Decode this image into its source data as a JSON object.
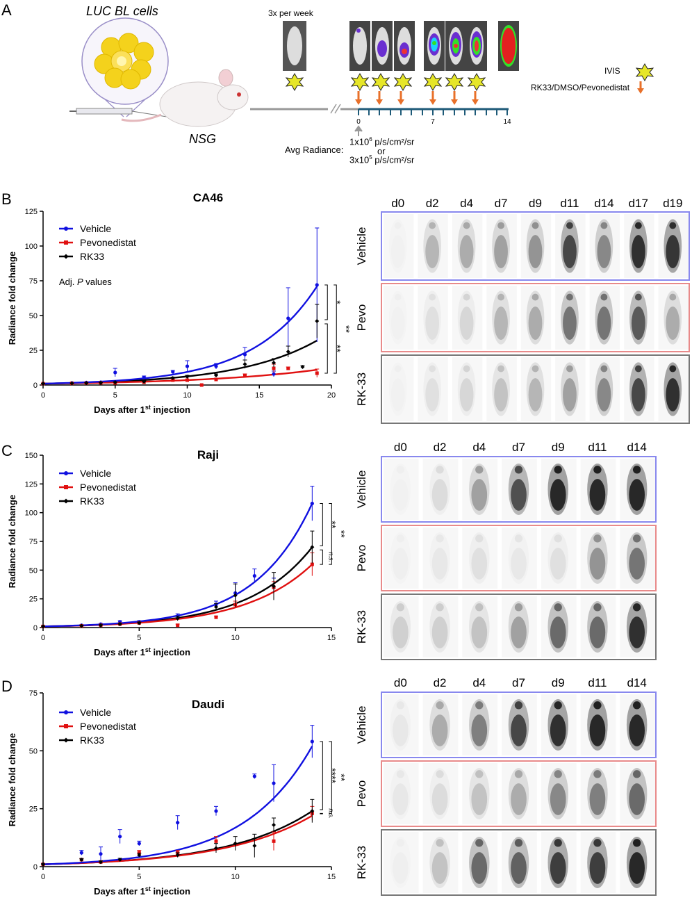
{
  "panels": {
    "a": "A",
    "b": "B",
    "c": "C",
    "d": "D"
  },
  "schema": {
    "cells_label": "LUC BL cells",
    "mouse_label": "NSG",
    "freq_label": "3x per week",
    "legend_ivis": "IVIS",
    "legend_treat": "RK33/DMSO/Pevonedistat",
    "axis_ticks": [
      "0",
      "7",
      "14"
    ],
    "radiance_label": "Avg Radiance:",
    "radiance_1_base": "1x10",
    "radiance_1_exp": "6",
    "radiance_1_unit": " p/s/cm²/sr",
    "radiance_or": "or",
    "radiance_2_base": "3x10",
    "radiance_2_exp": "5",
    "radiance_2_unit": " p/s/cm²/sr"
  },
  "colors": {
    "vehicle": "#1010e0",
    "pevo": "#e01010",
    "rk33": "#000000",
    "arrow": "#e8702a",
    "axis": "#1e5a78",
    "gray": "#999999"
  },
  "legend": {
    "vehicle": "Vehicle",
    "pevo": "Pevonedistat",
    "rk33": "RK33",
    "adj": "Adj. ",
    "adj_p": "P",
    "adj_values": " values"
  },
  "xlabel_base": "Days after 1",
  "xlabel_sup": "st",
  "xlabel_tail": " injection",
  "ylabel": "Radiance fold change",
  "imaging": {
    "row_labels": [
      "Vehicle",
      "Pevo",
      "RK-33"
    ],
    "days_ca46": [
      "d0",
      "d2",
      "d4",
      "d7",
      "d9",
      "d11",
      "d14",
      "d17",
      "d19"
    ],
    "days_raji": [
      "d0",
      "d2",
      "d4",
      "d7",
      "d9",
      "d11",
      "d14"
    ],
    "days_daudi": [
      "d0",
      "d2",
      "d4",
      "d7",
      "d9",
      "d11",
      "d14"
    ]
  },
  "chart_data": [
    {
      "type": "line",
      "title": "CA46",
      "xlabel": "Days after 1st injection",
      "ylabel": "Radiance fold change",
      "xlim": [
        0,
        20
      ],
      "ylim": [
        0,
        125
      ],
      "xticks": [
        0,
        5,
        10,
        15,
        20
      ],
      "yticks": [
        0,
        25,
        50,
        75,
        100,
        125
      ],
      "series": [
        {
          "name": "Vehicle",
          "x": [
            0,
            2,
            3,
            4,
            5,
            7,
            9,
            10,
            12,
            14,
            16,
            17,
            19
          ],
          "y": [
            1,
            1.5,
            1.8,
            2,
            9,
            5.5,
            9.5,
            13.5,
            13.5,
            22,
            8,
            48,
            72
          ],
          "err": [
            0.3,
            0.5,
            0.5,
            0.6,
            3,
            1,
            1,
            4,
            2,
            5,
            2,
            22,
            41
          ]
        },
        {
          "name": "Pevonedistat",
          "x": [
            0,
            2,
            3,
            4,
            5,
            7,
            9,
            10,
            11,
            12,
            14,
            16,
            17,
            19
          ],
          "y": [
            1,
            1.2,
            1.3,
            1.5,
            1.5,
            2,
            3.5,
            3.5,
            0,
            4,
            7,
            12,
            12,
            8.5
          ],
          "err": [
            0.2,
            0.3,
            0.3,
            0.3,
            0.4,
            0.5,
            0.5,
            0.5,
            0.2,
            1,
            1,
            3,
            1,
            3
          ]
        },
        {
          "name": "RK33",
          "x": [
            0,
            2,
            3,
            4,
            5,
            7,
            9,
            10,
            12,
            14,
            16,
            17,
            18,
            19
          ],
          "y": [
            1,
            1.2,
            1.4,
            1.6,
            2,
            2.5,
            5,
            6,
            7,
            15,
            16,
            24,
            13,
            46
          ],
          "err": [
            0.2,
            0.3,
            0.3,
            0.3,
            0.4,
            0.5,
            0.7,
            1,
            1,
            3,
            3,
            4,
            1,
            12
          ]
        }
      ],
      "fits": {
        "Vehicle": 71,
        "Pevonedistat": 11,
        "RK33": 32
      },
      "significance": [
        {
          "text": "*",
          "between": [
            "Vehicle",
            "RK33"
          ]
        },
        {
          "text": "**",
          "between": [
            "Vehicle",
            "Pevonedistat"
          ]
        },
        {
          "text": "**",
          "between": [
            "RK33",
            "Pevonedistat"
          ]
        }
      ],
      "annotation": "Adj. P values"
    },
    {
      "type": "line",
      "title": "Raji",
      "xlabel": "Days after 1st injection",
      "ylabel": "Radiance fold change",
      "xlim": [
        0,
        15
      ],
      "ylim": [
        0,
        150
      ],
      "xticks": [
        0,
        5,
        10,
        15
      ],
      "yticks": [
        0,
        25,
        50,
        75,
        100,
        125,
        150
      ],
      "series": [
        {
          "name": "Vehicle",
          "x": [
            0,
            2,
            3,
            4,
            5,
            7,
            9,
            10,
            11,
            12,
            14
          ],
          "y": [
            1,
            2,
            3,
            5,
            5,
            10,
            20,
            30,
            45,
            35,
            108
          ],
          "err": [
            0.3,
            0.5,
            0.6,
            1,
            1,
            2,
            3,
            9,
            6,
            8,
            15
          ]
        },
        {
          "name": "Pevonedistat",
          "x": [
            0,
            2,
            3,
            4,
            5,
            7,
            9,
            10,
            12,
            14
          ],
          "y": [
            1,
            1.5,
            2,
            3,
            4,
            2,
            9,
            20,
            35,
            55
          ],
          "err": [
            0.3,
            0.4,
            0.5,
            0.6,
            0.8,
            1,
            1,
            3,
            5,
            10
          ]
        },
        {
          "name": "RK33",
          "x": [
            0,
            2,
            3,
            4,
            5,
            7,
            9,
            10,
            12,
            14
          ],
          "y": [
            1,
            1.5,
            2,
            3,
            4,
            8,
            18,
            28,
            36,
            70
          ],
          "err": [
            0.3,
            0.4,
            0.5,
            0.6,
            0.8,
            2,
            3,
            10,
            12,
            14
          ]
        }
      ],
      "fits": {
        "Vehicle": 108,
        "Pevonedistat": 55,
        "RK33": 70
      },
      "significance": [
        {
          "text": "**",
          "between": [
            "Vehicle",
            "RK33"
          ]
        },
        {
          "text": "**",
          "between": [
            "Vehicle",
            "Pevonedistat"
          ]
        },
        {
          "text": "n.s.",
          "between": [
            "RK33",
            "Pevonedistat"
          ]
        }
      ]
    },
    {
      "type": "line",
      "title": "Daudi",
      "xlabel": "Days after 1st injection",
      "ylabel": "Radiance fold change",
      "xlim": [
        0,
        15
      ],
      "ylim": [
        0,
        75
      ],
      "xticks": [
        0,
        5,
        10,
        15
      ],
      "yticks": [
        0,
        25,
        50,
        75
      ],
      "series": [
        {
          "name": "Vehicle",
          "x": [
            0,
            2,
            3,
            4,
            5,
            7,
            9,
            11,
            12,
            14
          ],
          "y": [
            1,
            6,
            5.5,
            13,
            10,
            19,
            24,
            39,
            36,
            54
          ],
          "err": [
            0.3,
            1,
            3,
            3,
            1,
            3,
            2,
            1,
            8,
            7
          ]
        },
        {
          "name": "Pevonedistat",
          "x": [
            0,
            2,
            3,
            5,
            7,
            9,
            12,
            14
          ],
          "y": [
            1,
            3,
            2,
            6,
            6,
            11,
            11,
            23
          ],
          "err": [
            0.2,
            0.5,
            0.5,
            1,
            1,
            2,
            4,
            3
          ]
        },
        {
          "name": "RK33",
          "x": [
            0,
            2,
            3,
            4,
            5,
            7,
            9,
            10,
            11,
            12,
            14
          ],
          "y": [
            1,
            3,
            2,
            3,
            5,
            5,
            8,
            10,
            9,
            18,
            24
          ],
          "err": [
            0.2,
            0.5,
            0.5,
            0.6,
            0.8,
            1,
            2,
            3,
            5,
            3,
            5
          ]
        }
      ],
      "fits": {
        "Vehicle": 52,
        "Pevonedistat": 22,
        "RK33": 24
      },
      "significance": [
        {
          "text": "****",
          "between": [
            "Vehicle",
            "RK33"
          ]
        },
        {
          "text": "**",
          "between": [
            "Vehicle",
            "Pevonedistat"
          ]
        },
        {
          "text": "n.s.",
          "between": [
            "RK33",
            "Pevonedistat"
          ]
        }
      ]
    }
  ]
}
